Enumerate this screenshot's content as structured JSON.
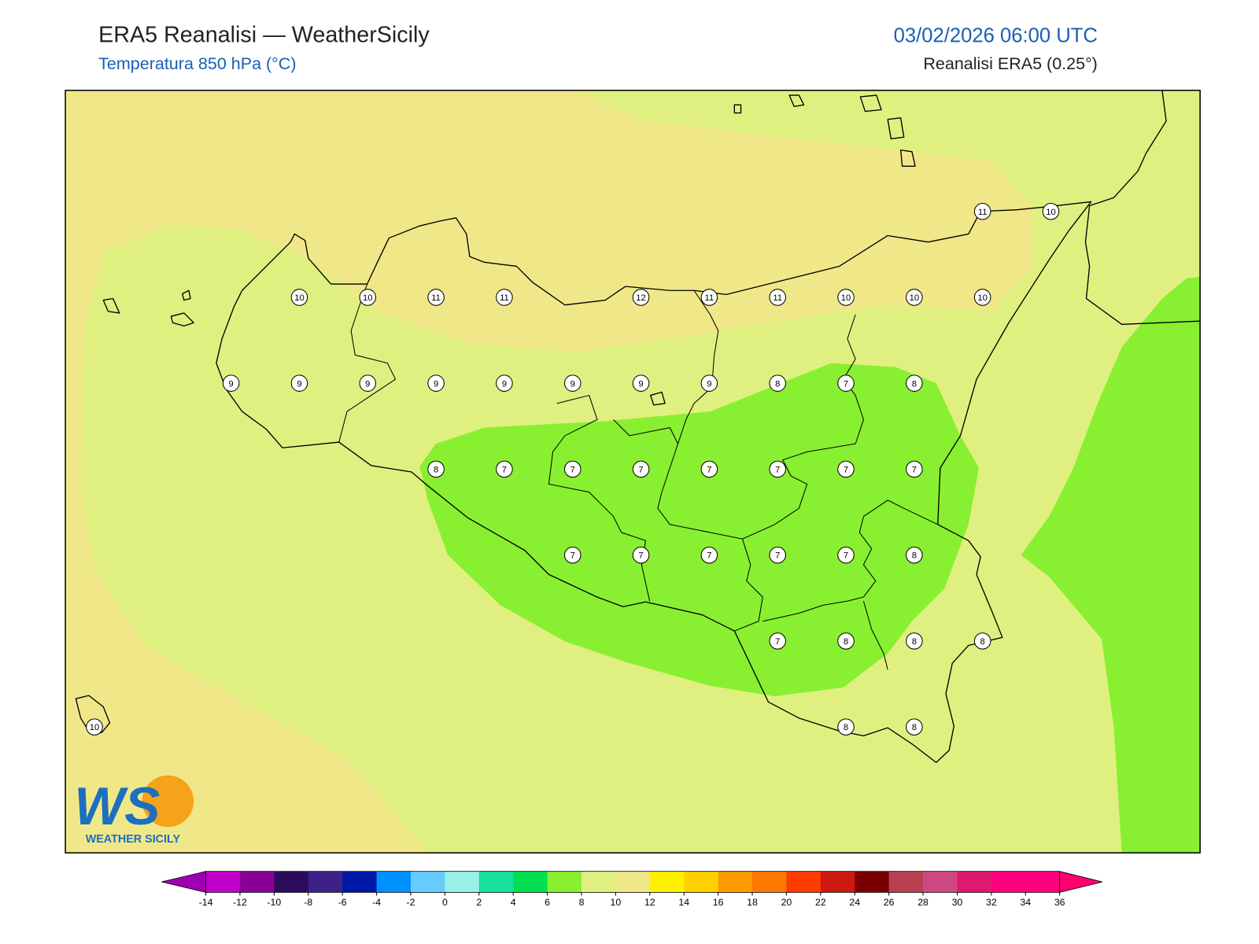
{
  "header": {
    "title": "ERA5 Reanalisi — WeatherSicily",
    "subtitle": "Temperatura 850 hPa (°C)",
    "datetime": "03/02/2026 06:00 UTC",
    "source": "Reanalisi ERA5 (0.25°)"
  },
  "stations": {
    "rows": [
      [
        null,
        null,
        null,
        null,
        null,
        null,
        null,
        null,
        null,
        null,
        null,
        null,
        null,
        11,
        10
      ],
      [
        null,
        null,
        null,
        10,
        10,
        11,
        11,
        null,
        12,
        11,
        11,
        10,
        10,
        10,
        null
      ],
      [
        null,
        null,
        9,
        9,
        9,
        9,
        9,
        9,
        9,
        9,
        8,
        7,
        8,
        null,
        null
      ],
      [
        null,
        null,
        null,
        null,
        null,
        8,
        7,
        7,
        7,
        7,
        7,
        7,
        7,
        null,
        null
      ],
      [
        null,
        null,
        null,
        null,
        null,
        null,
        null,
        7,
        7,
        7,
        7,
        7,
        8,
        null,
        null
      ],
      [
        null,
        null,
        null,
        null,
        null,
        null,
        null,
        null,
        null,
        null,
        7,
        8,
        8,
        8,
        null
      ],
      [
        10,
        null,
        null,
        null,
        null,
        null,
        null,
        null,
        null,
        null,
        null,
        8,
        8,
        null,
        null
      ]
    ]
  },
  "colorbar": {
    "ticks": [
      -14,
      -12,
      -10,
      -8,
      -6,
      -4,
      -2,
      0,
      2,
      4,
      6,
      8,
      10,
      12,
      14,
      16,
      18,
      20,
      22,
      24,
      26,
      28,
      30,
      32,
      34,
      36
    ],
    "colors": [
      "#c000c8",
      "#8a0096",
      "#2c0a5c",
      "#3c2288",
      "#0018a8",
      "#0090ff",
      "#66ccff",
      "#99f0e8",
      "#19e09a",
      "#00e050",
      "#88f030",
      "#e0f080",
      "#f0e888",
      "#fff000",
      "#ffd000",
      "#ff9a00",
      "#ff7800",
      "#ff3c00",
      "#cc1a10",
      "#7a0000",
      "#b84050",
      "#d04880",
      "#e01870",
      "#ff0080",
      "#ff0080"
    ],
    "under_color": "#a000b4",
    "over_color": "#ff0070"
  },
  "logo": {
    "mark": "WS",
    "name": "WEATHER SICILY"
  }
}
